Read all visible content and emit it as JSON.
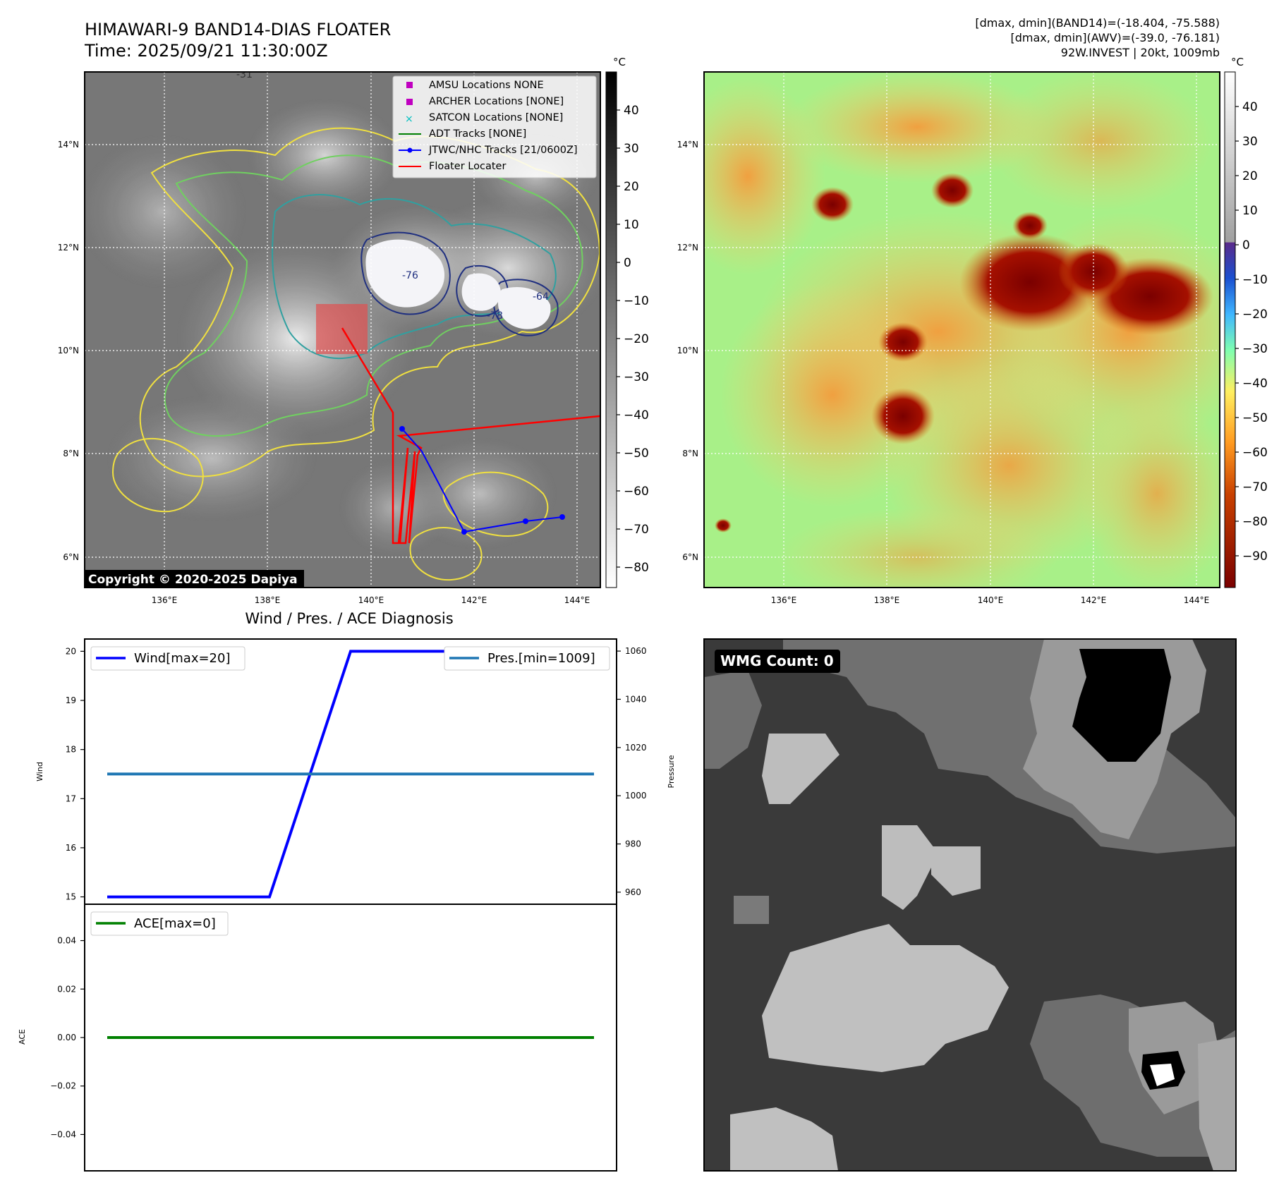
{
  "header": {
    "title": "HIMAWARI-9 BAND14-DIAS FLOATER",
    "time": "Time: 2025/09/21 11:30:00Z",
    "stats_band14": "[dmax, dmin](BAND14)=(-18.404, -75.588)",
    "stats_awv": "[dmax, dmin](AWV)=(-39.0, -76.181)",
    "storm_info": "92W.INVEST | 20kt, 1009mb"
  },
  "map": {
    "x_ticks": [
      "136°E",
      "138°E",
      "140°E",
      "142°E",
      "144°E"
    ],
    "y_ticks": [
      "14°N",
      "12°N",
      "10°N",
      "8°N",
      "6°N"
    ],
    "copyright": "Copyright © 2020-2025 Dapiya",
    "contour_labels": [
      "-31",
      "-76",
      "-78",
      "-64"
    ]
  },
  "colorbar_left": {
    "unit": "°C",
    "ticks": [
      "40",
      "30",
      "20",
      "10",
      "0",
      "−10",
      "−20",
      "−30",
      "−40",
      "−50",
      "−60",
      "−70",
      "−80"
    ]
  },
  "colorbar_right": {
    "unit": "°C",
    "ticks": [
      "40",
      "30",
      "20",
      "10",
      "0",
      "−10",
      "−20",
      "−30",
      "−40",
      "−50",
      "−60",
      "−70",
      "−80",
      "−90"
    ]
  },
  "legend": {
    "items": [
      {
        "label": "AMSU Locations NONE",
        "kind": "square",
        "color": "#c000c0"
      },
      {
        "label": "ARCHER Locations [NONE]",
        "kind": "square",
        "color": "#c000c0"
      },
      {
        "label": "SATCON Locations [NONE]",
        "kind": "x",
        "color": "#00c0c0"
      },
      {
        "label": "ADT Tracks [NONE]",
        "kind": "line",
        "color": "#008000"
      },
      {
        "label": "JTWC/NHC Tracks [21/0600Z]",
        "kind": "line-dot",
        "color": "#0000ff"
      },
      {
        "label": "Floater Locater",
        "kind": "line",
        "color": "#ff0000"
      }
    ]
  },
  "diagnosis": {
    "title": "Wind / Pres. / ACE Diagnosis",
    "wind_label": "Wind",
    "pressure_label": "Pressure",
    "ace_label": "ACE",
    "wind_legend": "Wind[max=20]",
    "pres_legend": "Pres.[min=1009]",
    "ace_legend": "ACE[max=0]",
    "wind_ticks": [
      "20",
      "19",
      "18",
      "17",
      "16",
      "15"
    ],
    "pres_ticks": [
      "1060",
      "1040",
      "1020",
      "1000",
      "980",
      "960"
    ],
    "ace_ticks": [
      "0.04",
      "0.02",
      "0.00",
      "−0.02",
      "−0.04"
    ]
  },
  "wmg": {
    "label": "WMG Count: 0"
  },
  "chart_data": [
    {
      "type": "line",
      "title": "Wind / Pres. / ACE Diagnosis",
      "ylabel": "Wind",
      "x": [
        0,
        1,
        2,
        3,
        4,
        5,
        6
      ],
      "ylim": [
        14.85,
        20.25
      ],
      "series": [
        {
          "name": "Wind[max=20]",
          "color": "#0000ff",
          "values": [
            15,
            15,
            15,
            20,
            20,
            20,
            20
          ]
        }
      ]
    },
    {
      "type": "line",
      "ylabel": "Pressure",
      "x": [
        0,
        1,
        2,
        3,
        4,
        5,
        6
      ],
      "ylim": [
        955,
        1065
      ],
      "series": [
        {
          "name": "Pres.[min=1009]",
          "color": "#1f77b4",
          "values": [
            1009,
            1009,
            1009,
            1009,
            1009,
            1009,
            1009
          ]
        }
      ]
    },
    {
      "type": "line",
      "ylabel": "ACE",
      "x": [
        0,
        1,
        2,
        3,
        4,
        5,
        6
      ],
      "ylim": [
        -0.055,
        0.055
      ],
      "series": [
        {
          "name": "ACE[max=0]",
          "color": "#008000",
          "values": [
            0,
            0,
            0,
            0,
            0,
            0,
            0
          ]
        }
      ]
    }
  ]
}
